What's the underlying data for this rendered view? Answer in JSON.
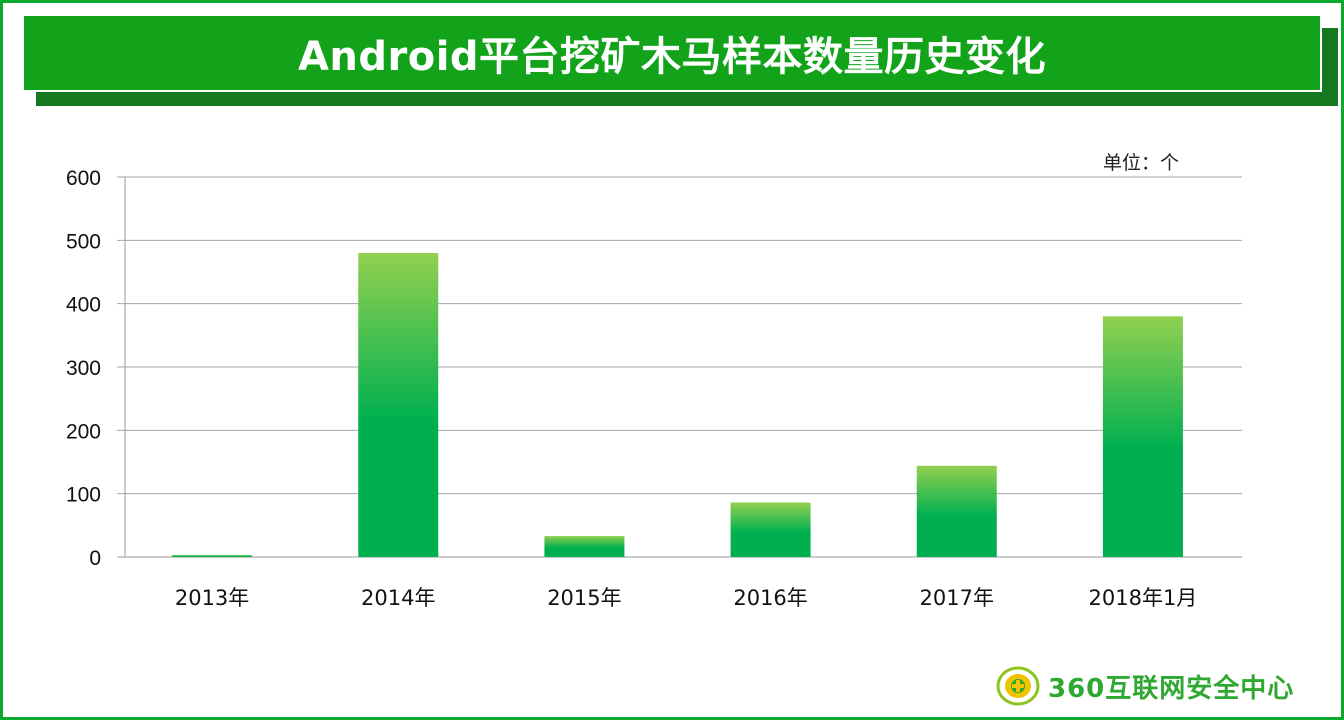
{
  "header": {
    "title": "Android平台挖矿木马样本数量历史变化"
  },
  "unit": "单位：个",
  "logo": {
    "text": "360互联网安全中心"
  },
  "colors": {
    "accent": "#12a31b",
    "bar_top": "#92d050",
    "bar_bottom": "#00b050"
  },
  "chart_data": {
    "type": "bar",
    "categories": [
      "2013年",
      "2014年",
      "2015年",
      "2016年",
      "2017年",
      "2018年1月"
    ],
    "values": [
      3,
      480,
      33,
      86,
      144,
      380
    ],
    "ylim": [
      0,
      600
    ],
    "yticks": [
      0,
      100,
      200,
      300,
      400,
      500,
      600
    ],
    "grid": true,
    "legend": "none"
  }
}
